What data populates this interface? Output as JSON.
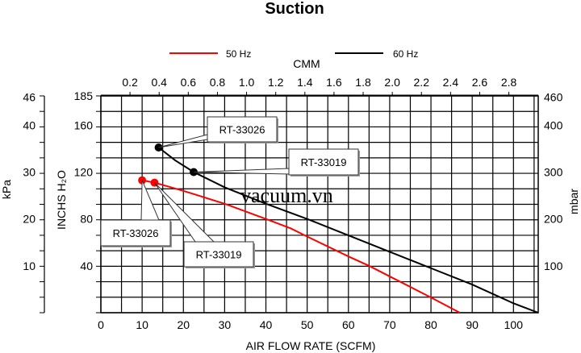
{
  "chart_data": {
    "type": "line",
    "title": "Suction",
    "xlabel": "AIR FLOW RATE (SCFM)",
    "x2label": "CMM",
    "ylabel": "INCHS H₂O",
    "y_left_outer_label": "kPa",
    "y_right_label": "mbar",
    "xlim": [
      0,
      106
    ],
    "ylim": [
      0,
      185
    ],
    "grid": true,
    "legend_placement": "top",
    "x_ticks": [
      0,
      10,
      20,
      30,
      40,
      50,
      60,
      70,
      80,
      90,
      100
    ],
    "x2_ticks": [
      "0.2",
      "0.4",
      "0.6",
      "0.8",
      "1.0",
      "1.2",
      "1.4",
      "1.6",
      "1.8",
      "2.0",
      "2.2",
      "2.4",
      "2.6",
      "2.8"
    ],
    "y_ticks": [
      40,
      80,
      120,
      160,
      185
    ],
    "kpa_ticks": [
      10,
      20,
      30,
      40,
      46
    ],
    "mbar_ticks": [
      100,
      200,
      300,
      400,
      460
    ],
    "series": [
      {
        "name": "50 Hz",
        "color": "#ff0000",
        "x": [
          10,
          13,
          20,
          30,
          40,
          46,
          50,
          60,
          65,
          70,
          80,
          87
        ],
        "y": [
          113,
          111,
          104,
          93,
          80,
          72,
          65,
          48,
          40,
          31,
          13,
          0
        ],
        "markers": [
          {
            "x": 10,
            "y": 113,
            "label": "RT-33026"
          },
          {
            "x": 13,
            "y": 111,
            "label": "RT-33019"
          }
        ]
      },
      {
        "name": "60 Hz",
        "color": "#000000",
        "x": [
          14,
          18,
          22.5,
          30,
          40,
          50,
          60,
          70,
          80,
          90,
          100,
          106
        ],
        "y": [
          141,
          130,
          120,
          107,
          93,
          80,
          66,
          52,
          38,
          24,
          8,
          0
        ],
        "markers": [
          {
            "x": 14,
            "y": 141,
            "label": "RT-33026"
          },
          {
            "x": 22.5,
            "y": 120,
            "label": "RT-33019"
          }
        ]
      }
    ]
  },
  "watermark": "vacuum.vn"
}
